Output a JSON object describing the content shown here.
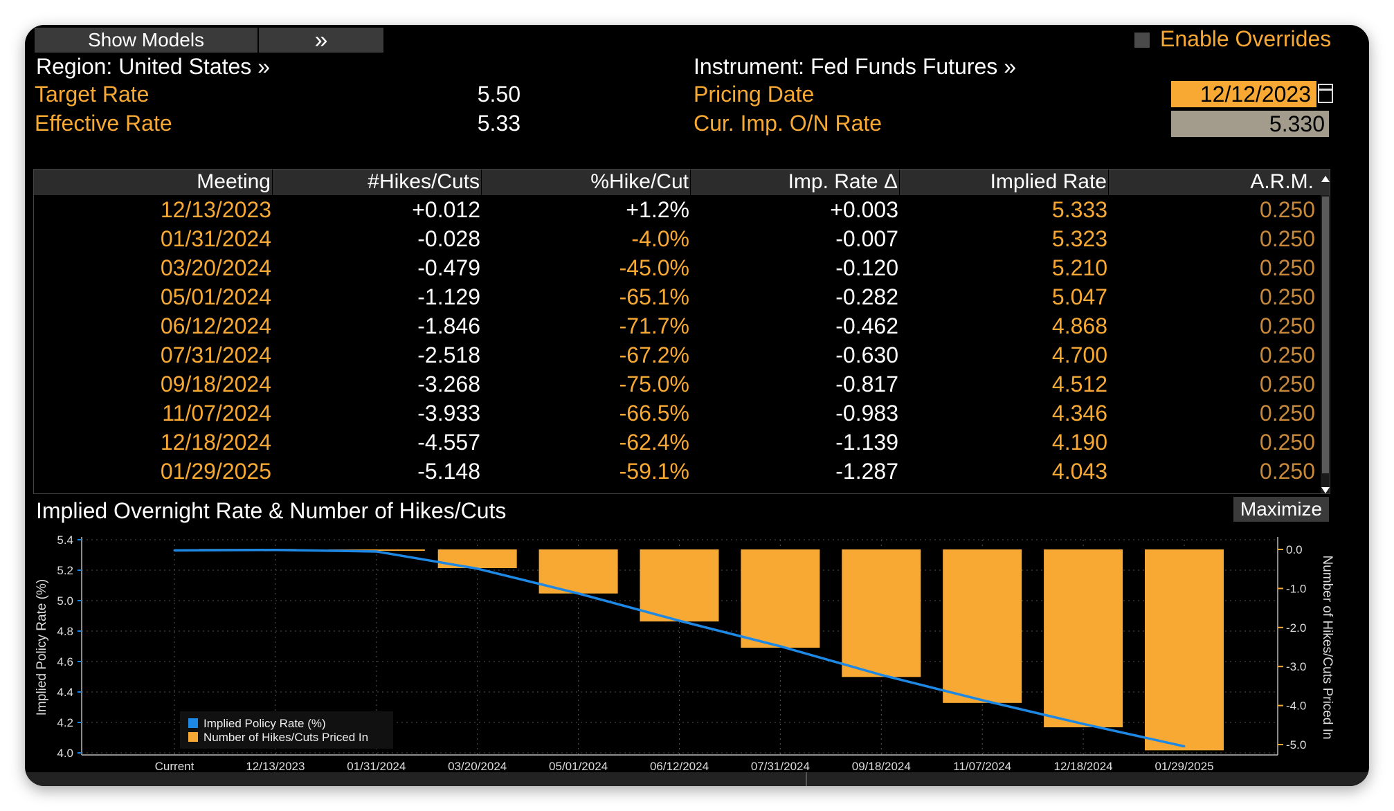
{
  "toolbar": {
    "show_models": "Show Models",
    "forward": "»",
    "enable_overrides": "Enable Overrides"
  },
  "header": {
    "region": "Region: United States »",
    "instrument": "Instrument: Fed Funds Futures »",
    "target_rate_label": "Target Rate",
    "target_rate": "5.50",
    "effective_rate_label": "Effective Rate",
    "effective_rate": "5.33",
    "pricing_date_label": "Pricing Date",
    "pricing_date": "12/12/2023",
    "cur_imp_label": "Cur. Imp. O/N Rate",
    "cur_imp_rate": "5.330"
  },
  "table": {
    "columns": [
      "Meeting",
      "#Hikes/Cuts",
      "%Hike/Cut",
      "Imp. Rate Δ",
      "Implied Rate",
      "A.R.M."
    ],
    "rows": [
      [
        "12/13/2023",
        "+0.012",
        "+1.2%",
        "+0.003",
        "5.333",
        "0.250"
      ],
      [
        "01/31/2024",
        "-0.028",
        "-4.0%",
        "-0.007",
        "5.323",
        "0.250"
      ],
      [
        "03/20/2024",
        "-0.479",
        "-45.0%",
        "-0.120",
        "5.210",
        "0.250"
      ],
      [
        "05/01/2024",
        "-1.129",
        "-65.1%",
        "-0.282",
        "5.047",
        "0.250"
      ],
      [
        "06/12/2024",
        "-1.846",
        "-71.7%",
        "-0.462",
        "4.868",
        "0.250"
      ],
      [
        "07/31/2024",
        "-2.518",
        "-67.2%",
        "-0.630",
        "4.700",
        "0.250"
      ],
      [
        "09/18/2024",
        "-3.268",
        "-75.0%",
        "-0.817",
        "4.512",
        "0.250"
      ],
      [
        "11/07/2024",
        "-3.933",
        "-66.5%",
        "-0.983",
        "4.346",
        "0.250"
      ],
      [
        "12/18/2024",
        "-4.557",
        "-62.4%",
        "-1.139",
        "4.190",
        "0.250"
      ],
      [
        "01/29/2025",
        "-5.148",
        "-59.1%",
        "-1.287",
        "4.043",
        "0.250"
      ]
    ]
  },
  "chart_title": "Implied Overnight Rate & Number of Hikes/Cuts",
  "maximize": "Maximize",
  "colors": {
    "accent": "#f7a934",
    "line": "#1e88e5",
    "bg": "#000000"
  },
  "chart_data": {
    "type": "bar",
    "categories": [
      "Current",
      "12/13/2023",
      "01/31/2024",
      "03/20/2024",
      "05/01/2024",
      "06/12/2024",
      "07/31/2024",
      "09/18/2024",
      "11/07/2024",
      "12/18/2024",
      "01/29/2025"
    ],
    "series": [
      {
        "name": "Implied Policy Rate (%)",
        "type": "line",
        "axis": "left",
        "values": [
          5.33,
          5.333,
          5.323,
          5.21,
          5.047,
          4.868,
          4.7,
          4.512,
          4.346,
          4.19,
          4.043
        ]
      },
      {
        "name": "Number of Hikes/Cuts Priced In",
        "type": "bar",
        "axis": "right",
        "values": [
          null,
          0.012,
          -0.028,
          -0.479,
          -1.129,
          -1.846,
          -2.518,
          -3.268,
          -3.933,
          -4.557,
          -5.148
        ]
      }
    ],
    "ylabel": "Implied Policy Rate (%)",
    "ylabel_right": "Number of Hikes/Cuts Priced In",
    "ylim": [
      4.0,
      5.4
    ],
    "ylim_right": [
      -5.0,
      0.0
    ],
    "yticks": [
      "4.0",
      "4.2",
      "4.4",
      "4.6",
      "4.8",
      "5.0",
      "5.2",
      "5.4"
    ],
    "yticks_right": [
      "0.0",
      "-1.0",
      "-2.0",
      "-3.0",
      "-4.0",
      "-5.0"
    ],
    "legend": "bottom-left",
    "grid": true
  }
}
